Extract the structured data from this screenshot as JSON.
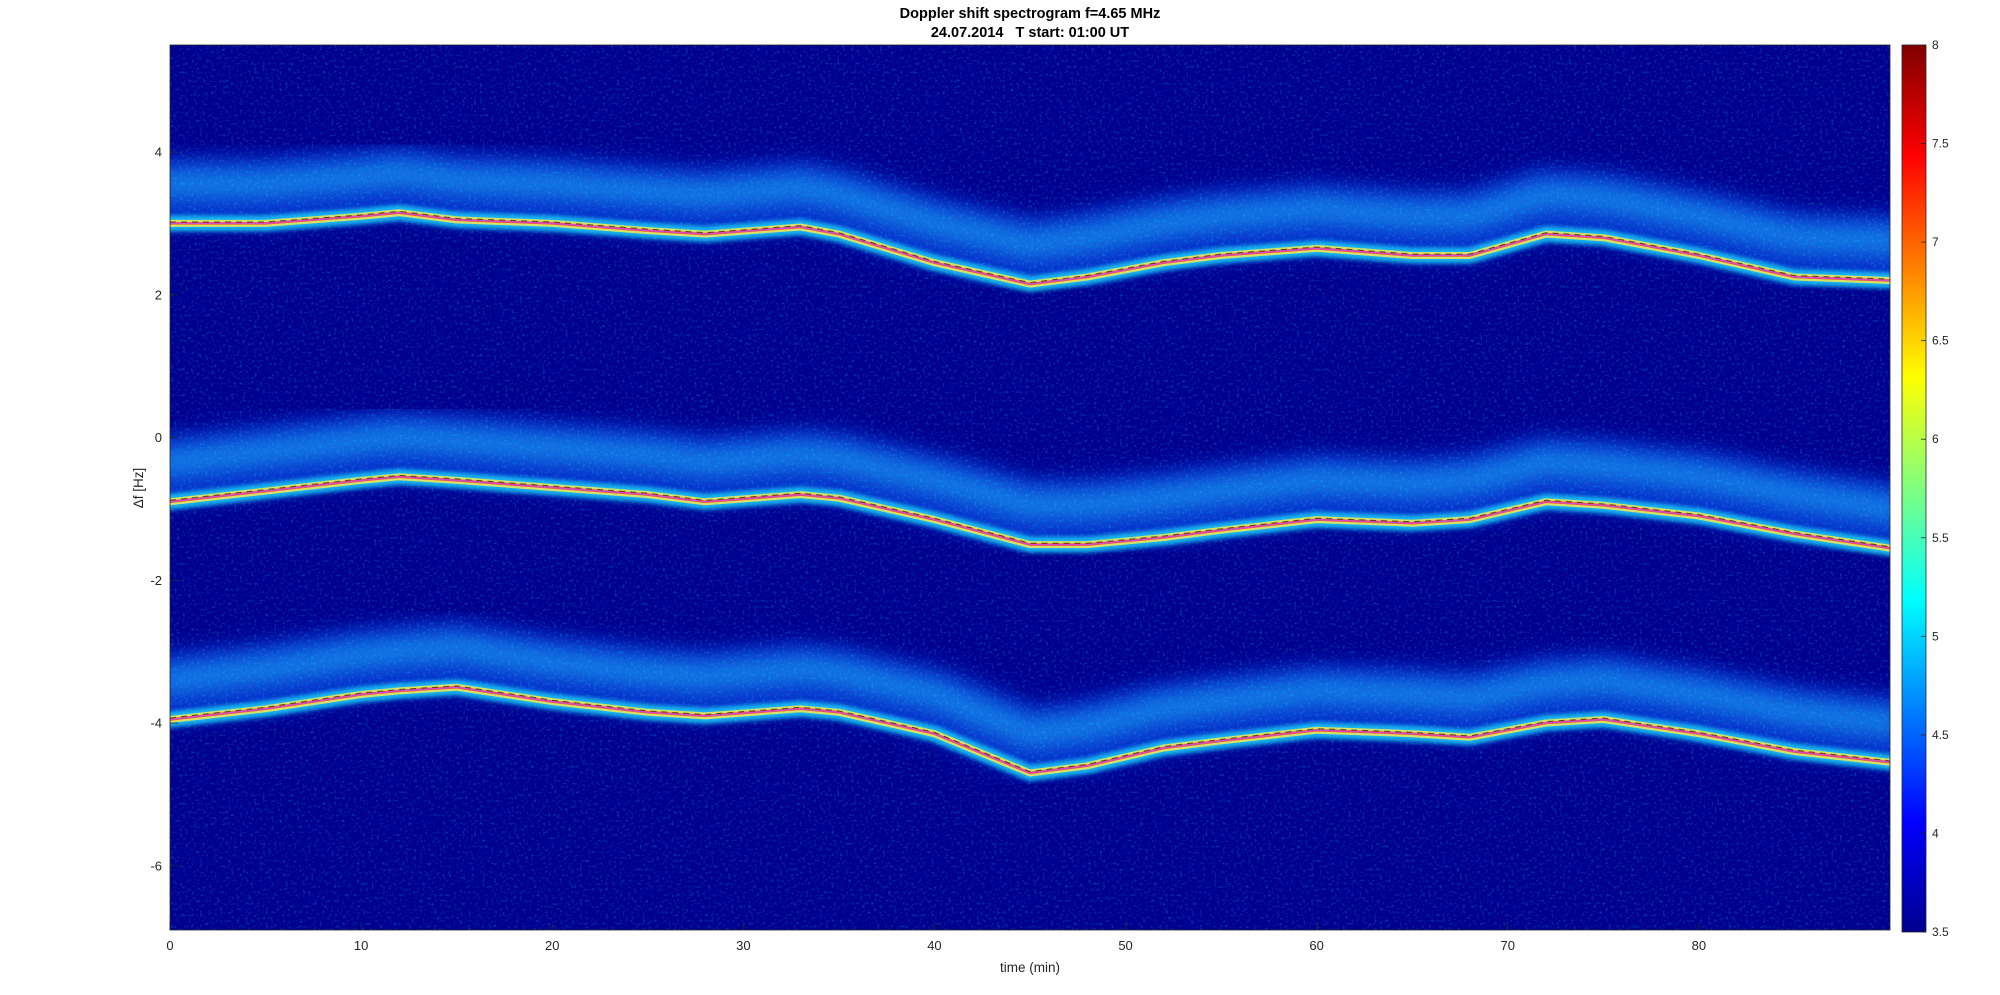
{
  "chart_data": {
    "type": "heatmap",
    "title": "Doppler shift spectrogram f=4.65 MHz",
    "subtitle": "24.07.2014   T start: 01:00 UT",
    "xlabel": "time (min)",
    "ylabel": "Δf [Hz]",
    "xlim": [
      0,
      90
    ],
    "ylim": [
      -6.9,
      5.5
    ],
    "xticks": [
      "0",
      "10",
      "20",
      "30",
      "40",
      "50",
      "60",
      "70",
      "80"
    ],
    "xtick_values": [
      0,
      10,
      20,
      30,
      40,
      50,
      60,
      70,
      80
    ],
    "yticks": [
      "4",
      "2",
      "0",
      "-2",
      "-4",
      "-6"
    ],
    "ytick_values": [
      4,
      2,
      0,
      -2,
      -4,
      -6
    ],
    "colorbar": {
      "ticks": [
        "8",
        "7.5",
        "7",
        "6.5",
        "6",
        "5.5",
        "5",
        "4.5",
        "4",
        "3.5"
      ],
      "values": [
        8,
        7.5,
        7,
        6.5,
        6,
        5.5,
        5,
        4.5,
        4,
        3.5
      ],
      "range": [
        3.5,
        8
      ],
      "colormap": "jet"
    },
    "background_color": "#00008f",
    "grid": false,
    "series": [
      {
        "x": [
          0,
          5,
          10,
          12,
          15,
          20,
          25,
          28,
          33,
          35,
          40,
          45,
          48,
          52,
          55,
          60,
          65,
          68,
          72,
          75,
          80,
          85,
          90
        ],
        "y": [
          3.0,
          3.0,
          3.1,
          3.15,
          3.05,
          3.0,
          2.9,
          2.85,
          2.95,
          2.85,
          2.45,
          2.15,
          2.25,
          2.45,
          2.55,
          2.65,
          2.55,
          2.55,
          2.85,
          2.8,
          2.55,
          2.25,
          2.2
        ]
      },
      {
        "x": [
          0,
          5,
          10,
          12,
          15,
          20,
          25,
          28,
          33,
          35,
          40,
          45,
          48,
          52,
          55,
          60,
          65,
          68,
          72,
          75,
          80,
          85,
          90
        ],
        "y": [
          -0.9,
          -0.75,
          -0.6,
          -0.55,
          -0.6,
          -0.7,
          -0.8,
          -0.9,
          -0.8,
          -0.85,
          -1.15,
          -1.5,
          -1.5,
          -1.4,
          -1.3,
          -1.15,
          -1.2,
          -1.15,
          -0.9,
          -0.95,
          -1.1,
          -1.35,
          -1.55
        ]
      },
      {
        "x": [
          0,
          5,
          10,
          12,
          15,
          20,
          25,
          28,
          33,
          35,
          40,
          45,
          48,
          52,
          55,
          60,
          65,
          68,
          72,
          75,
          80,
          85,
          90
        ],
        "y": [
          -3.95,
          -3.8,
          -3.6,
          -3.55,
          -3.5,
          -3.7,
          -3.85,
          -3.9,
          -3.8,
          -3.85,
          -4.15,
          -4.7,
          -4.6,
          -4.35,
          -4.25,
          -4.1,
          -4.15,
          -4.2,
          -4.0,
          -3.95,
          -4.15,
          -4.4,
          -4.55
        ]
      }
    ],
    "annotations": []
  }
}
